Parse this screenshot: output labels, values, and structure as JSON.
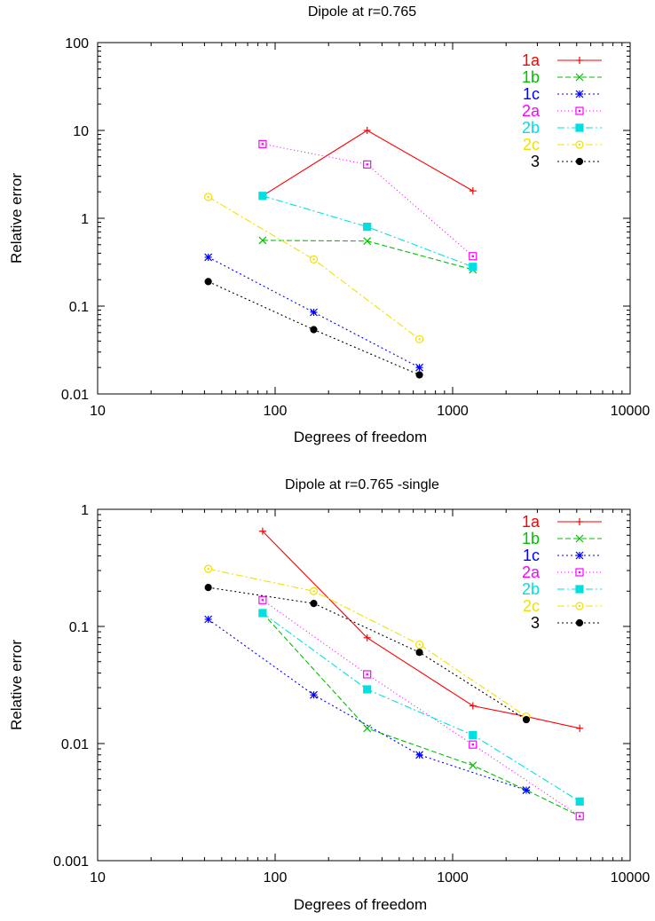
{
  "chart_data": [
    {
      "type": "line",
      "title": "Dipole at r=0.765",
      "xlabel": "Degrees of freedom",
      "ylabel": "Relative error",
      "xscale": "log",
      "yscale": "log",
      "xlim": [
        10,
        10000
      ],
      "ylim": [
        0.01,
        100
      ],
      "x_ticks": [
        "10",
        "100",
        "1000",
        "10000"
      ],
      "y_ticks": [
        "0.01",
        "0.1",
        "1",
        "10",
        "100"
      ],
      "legend_position": "top-right",
      "series": [
        {
          "name": "1a",
          "color": "#ff0000",
          "dash": "",
          "marker": "plus",
          "points": [
            [
              85,
              1.8
            ],
            [
              330,
              10
            ],
            [
              1300,
              2.05
            ]
          ]
        },
        {
          "name": "1b",
          "color": "#00c000",
          "dash": "6,3",
          "marker": "cross",
          "points": [
            [
              85,
              0.56
            ],
            [
              330,
              0.55
            ],
            [
              1300,
              0.26
            ]
          ]
        },
        {
          "name": "1c",
          "color": "#0000ff",
          "dash": "2,3",
          "marker": "star",
          "points": [
            [
              42,
              0.36
            ],
            [
              165,
              0.085
            ],
            [
              650,
              0.02
            ]
          ]
        },
        {
          "name": "2a",
          "color": "#ff00ff",
          "dash": "1,3",
          "marker": "open-square",
          "points": [
            [
              85,
              7.0
            ],
            [
              330,
              4.1
            ],
            [
              1300,
              0.37
            ]
          ]
        },
        {
          "name": "2b",
          "color": "#00e0e0",
          "dash": "8,3,2,3",
          "marker": "filled-square",
          "points": [
            [
              85,
              1.8
            ],
            [
              330,
              0.8
            ],
            [
              1300,
              0.28
            ]
          ]
        },
        {
          "name": "2c",
          "color": "#f0e000",
          "dash": "8,3,2,3",
          "marker": "open-circle",
          "points": [
            [
              42,
              1.75
            ],
            [
              165,
              0.34
            ],
            [
              650,
              0.042
            ]
          ]
        },
        {
          "name": "3",
          "color": "#000000",
          "dash": "2,3",
          "marker": "filled-circle",
          "points": [
            [
              42,
              0.19
            ],
            [
              165,
              0.054
            ],
            [
              650,
              0.0165
            ]
          ]
        }
      ]
    },
    {
      "type": "line",
      "title": "Dipole at r=0.765 -single",
      "xlabel": "Degrees of freedom",
      "ylabel": "Relative error",
      "xscale": "log",
      "yscale": "log",
      "xlim": [
        10,
        10000
      ],
      "ylim": [
        0.001,
        1
      ],
      "x_ticks": [
        "10",
        "100",
        "1000",
        "10000"
      ],
      "y_ticks": [
        "0.001",
        "0.01",
        "0.1",
        "1"
      ],
      "legend_position": "top-right",
      "series": [
        {
          "name": "1a",
          "color": "#ff0000",
          "dash": "",
          "marker": "plus",
          "points": [
            [
              85,
              0.65
            ],
            [
              330,
              0.08
            ],
            [
              1300,
              0.021
            ],
            [
              2600,
              0.017
            ],
            [
              5200,
              0.0135
            ]
          ]
        },
        {
          "name": "1b",
          "color": "#00c000",
          "dash": "6,3",
          "marker": "cross",
          "points": [
            [
              85,
              0.13
            ],
            [
              330,
              0.0135
            ],
            [
              1300,
              0.0065
            ],
            [
              2600,
              0.004
            ],
            [
              5200,
              0.0024
            ]
          ]
        },
        {
          "name": "1c",
          "color": "#0000ff",
          "dash": "2,3",
          "marker": "star",
          "points": [
            [
              42,
              0.115
            ],
            [
              165,
              0.026
            ],
            [
              650,
              0.008
            ],
            [
              2600,
              0.004
            ]
          ]
        },
        {
          "name": "2a",
          "color": "#ff00ff",
          "dash": "1,3",
          "marker": "open-square",
          "points": [
            [
              85,
              0.168
            ],
            [
              330,
              0.039
            ],
            [
              1300,
              0.0098
            ],
            [
              5200,
              0.0024
            ]
          ]
        },
        {
          "name": "2b",
          "color": "#00e0e0",
          "dash": "8,3,2,3",
          "marker": "filled-square",
          "points": [
            [
              85,
              0.13
            ],
            [
              330,
              0.029
            ],
            [
              1300,
              0.0118
            ],
            [
              5200,
              0.0032
            ]
          ]
        },
        {
          "name": "2c",
          "color": "#f0e000",
          "dash": "8,3,2,3",
          "marker": "open-circle",
          "points": [
            [
              42,
              0.31
            ],
            [
              165,
              0.2
            ],
            [
              650,
              0.07
            ],
            [
              2600,
              0.017
            ]
          ]
        },
        {
          "name": "3",
          "color": "#000000",
          "dash": "2,3",
          "marker": "filled-circle",
          "points": [
            [
              42,
              0.215
            ],
            [
              165,
              0.157
            ],
            [
              650,
              0.06
            ],
            [
              2600,
              0.016
            ]
          ]
        }
      ]
    }
  ]
}
